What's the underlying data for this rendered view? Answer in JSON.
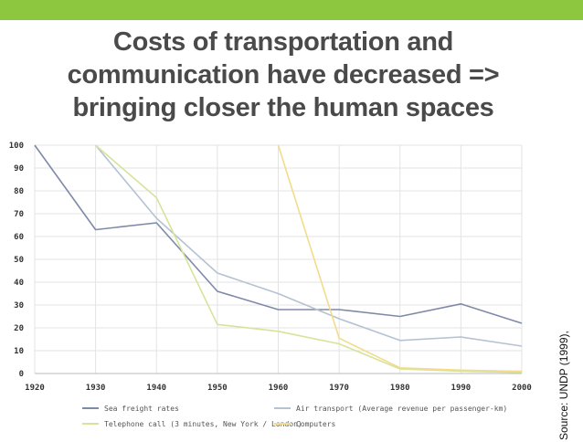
{
  "slide": {
    "title_lines": [
      "Costs of transportation and",
      "communication have decreased =>",
      "bringing closer the human spaces"
    ],
    "source": "Source: UNDP (1999),",
    "accent_color": "#8dc63f",
    "title_color": "#4a4a4a"
  },
  "chart_data": {
    "type": "line",
    "title": "",
    "xlabel": "",
    "ylabel": "",
    "x": [
      1920,
      1930,
      1940,
      1950,
      1960,
      1970,
      1980,
      1990,
      2000
    ],
    "x_tick_labels": [
      "1920",
      "1930",
      "1940",
      "1950",
      "1960",
      "1970",
      "1980",
      "1990",
      "2000"
    ],
    "y_tick_labels": [
      "0",
      "10",
      "20",
      "30",
      "40",
      "50",
      "60",
      "70",
      "80",
      "90",
      "100"
    ],
    "xlim": [
      1920,
      2000
    ],
    "ylim": [
      0,
      100
    ],
    "grid": true,
    "legend_position": "bottom",
    "series": [
      {
        "name": "Sea freight rates",
        "color": "#7f8aa8",
        "points": [
          [
            1920,
            100
          ],
          [
            1930,
            63
          ],
          [
            1940,
            66
          ],
          [
            1950,
            36
          ],
          [
            1960,
            28
          ],
          [
            1970,
            28
          ],
          [
            1980,
            25
          ],
          [
            1990,
            30.5
          ],
          [
            2000,
            22
          ]
        ]
      },
      {
        "name": "Air transport (Average revenue per passenger-km)",
        "color": "#b4c2d2",
        "points": [
          [
            1930,
            100
          ],
          [
            1940,
            68
          ],
          [
            1950,
            44
          ],
          [
            1960,
            35
          ],
          [
            1970,
            24
          ],
          [
            1980,
            14.5
          ],
          [
            1990,
            16
          ],
          [
            2000,
            12
          ]
        ]
      },
      {
        "name": "Telephone call (3 minutes, New York / London)",
        "color": "#d6e39a",
        "points": [
          [
            1930,
            100
          ],
          [
            1940,
            77
          ],
          [
            1950,
            21.5
          ],
          [
            1960,
            18.5
          ],
          [
            1970,
            13
          ],
          [
            1980,
            2
          ],
          [
            1990,
            1
          ],
          [
            2000,
            0.5
          ]
        ]
      },
      {
        "name": "Computers",
        "color": "#f2dc8a",
        "points": [
          [
            1960,
            100
          ],
          [
            1970,
            15.5
          ],
          [
            1980,
            2.5
          ],
          [
            1990,
            1.5
          ],
          [
            2000,
            1
          ]
        ]
      }
    ]
  }
}
